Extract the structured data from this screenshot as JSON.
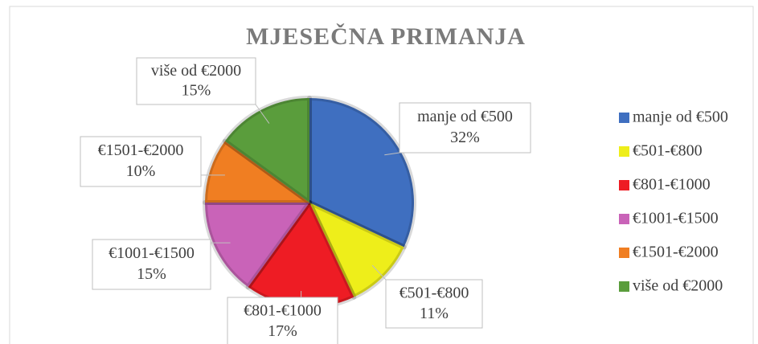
{
  "chart_data": {
    "type": "pie",
    "title": "MJESEČNA PRIMANJA",
    "categories": [
      "manje od €500",
      "€501-€800",
      "€801-€1000",
      "€1001-€1500",
      "€1501-€2000",
      "više od €2000"
    ],
    "values": [
      32,
      11,
      17,
      15,
      10,
      15
    ],
    "value_labels": [
      "32%",
      "11%",
      "17%",
      "15%",
      "10%",
      "15%"
    ],
    "colors": [
      "#3f6fc0",
      "#eeee1a",
      "#ee1c24",
      "#c963b8",
      "#f07e22",
      "#5a9d3c"
    ],
    "legend": "right"
  }
}
